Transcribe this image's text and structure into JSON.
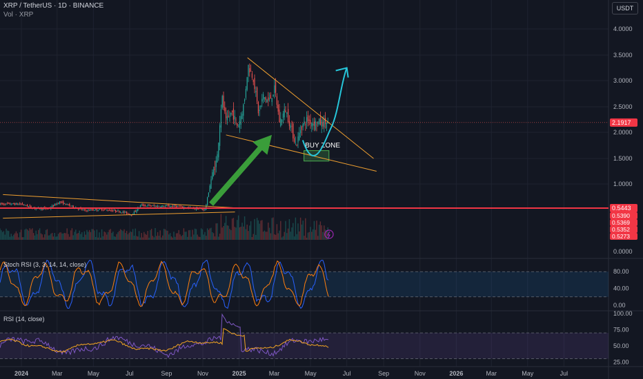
{
  "header": {
    "title": "XRP / TetherUS · 1D · BINANCE",
    "subtitle": "Vol · XRP",
    "currency": "USDT"
  },
  "colors": {
    "background": "#131722",
    "grid": "#1f2330",
    "up": "#26a69a",
    "down": "#ef5350",
    "trendline": "#f0a030",
    "arrow_green": "#3a9d3a",
    "arrow_cyan": "#26c6da",
    "rsi_line": "#7e57c2",
    "rsi_signal": "#f5a623",
    "stoch_k": "#2962ff",
    "stoch_d": "#ff7f0e"
  },
  "chart_data": [
    {
      "type": "line",
      "name": "price",
      "yticks": [
        4.0,
        3.5,
        3.0,
        2.5,
        2.0,
        1.5,
        1.0
      ],
      "yticks_text": [
        "4.0000",
        "3.5000",
        "3.0000",
        "2.5000",
        "2.0000",
        "1.5000",
        "1.0000"
      ],
      "ylim_note": "linear price axis",
      "x_labels": [
        "2024",
        "Mar",
        "May",
        "Jul",
        "Sep",
        "Nov",
        "2025",
        "Mar",
        "May",
        "Jul",
        "Sep",
        "Nov",
        "2026",
        "Mar",
        "May",
        "Jul"
      ],
      "x_labels_bold": [
        "2024",
        "2025",
        "2026"
      ],
      "price_points": [
        [
          "2024-01-01",
          0.62
        ],
        [
          "2024-01-20",
          0.55
        ],
        [
          "2024-02-15",
          0.53
        ],
        [
          "2024-03-05",
          0.66
        ],
        [
          "2024-03-20",
          0.6
        ],
        [
          "2024-04-15",
          0.5
        ],
        [
          "2024-05-15",
          0.52
        ],
        [
          "2024-06-15",
          0.48
        ],
        [
          "2024-07-05",
          0.42
        ],
        [
          "2024-07-20",
          0.6
        ],
        [
          "2024-08-15",
          0.58
        ],
        [
          "2024-09-15",
          0.58
        ],
        [
          "2024-10-15",
          0.54
        ],
        [
          "2024-11-05",
          0.52
        ],
        [
          "2024-11-15",
          1.1
        ],
        [
          "2024-11-25",
          1.5
        ],
        [
          "2024-12-03",
          2.7
        ],
        [
          "2024-12-10",
          2.2
        ],
        [
          "2024-12-20",
          2.4
        ],
        [
          "2024-12-30",
          2.1
        ],
        [
          "2025-01-10",
          2.6
        ],
        [
          "2025-01-16",
          3.3
        ],
        [
          "2025-01-25",
          3.05
        ],
        [
          "2025-02-03",
          2.35
        ],
        [
          "2025-02-10",
          2.7
        ],
        [
          "2025-02-20",
          2.6
        ],
        [
          "2025-03-02",
          2.85
        ],
        [
          "2025-03-10",
          2.2
        ],
        [
          "2025-03-20",
          2.45
        ],
        [
          "2025-04-07",
          1.75
        ],
        [
          "2025-04-15",
          2.1
        ],
        [
          "2025-04-25",
          2.25
        ],
        [
          "2025-05-05",
          2.19
        ]
      ],
      "last_price": "2.1917",
      "horizontal_level": "0.5443",
      "level_labels": [
        "0.5390",
        "0.5369",
        "0.5352",
        "0.5273"
      ],
      "annotations": [
        {
          "type": "text",
          "text": "BUY ZONE",
          "date": "2025-05-01",
          "price": 1.75
        },
        {
          "type": "box",
          "from": "2025-04-20",
          "to": "2025-06-01",
          "price_low": 1.45,
          "price_high": 1.65
        },
        {
          "type": "trendline",
          "from": [
            "2025-01-15",
            3.45
          ],
          "to": [
            "2025-08-15",
            1.5
          ]
        },
        {
          "type": "trendline",
          "from": [
            "2024-12-10",
            1.95
          ],
          "to": [
            "2025-08-20",
            1.25
          ]
        },
        {
          "type": "trendline",
          "from": [
            "2023-12-01",
            0.8
          ],
          "to": [
            "2024-12-25",
            0.55
          ]
        },
        {
          "type": "trendline",
          "from": [
            "2023-12-01",
            0.35
          ],
          "to": [
            "2024-12-25",
            0.47
          ]
        },
        {
          "type": "arrow",
          "color": "green",
          "from": [
            "2024-11-15",
            0.62
          ],
          "to": [
            "2025-02-25",
            1.95
          ]
        },
        {
          "type": "curve_arrow",
          "color": "cyan",
          "points": [
            [
              "2025-04-18",
              1.85
            ],
            [
              "2025-05-08",
              1.5
            ],
            [
              "2025-06-05",
              2.1
            ],
            [
              "2025-07-01",
              3.25
            ]
          ]
        }
      ]
    },
    {
      "type": "line",
      "name": "Stoch RSI (3, 3, 14, 14, close)",
      "yticks_text": [
        "80.00",
        "40.00",
        "0.00"
      ],
      "band": [
        20,
        80
      ]
    },
    {
      "type": "line",
      "name": "RSI (14, close)",
      "yticks_text": [
        "100.00",
        "75.00",
        "50.00",
        "25.00"
      ],
      "band": [
        30,
        70
      ]
    }
  ],
  "volume_axis": {
    "label": "0.0000"
  }
}
